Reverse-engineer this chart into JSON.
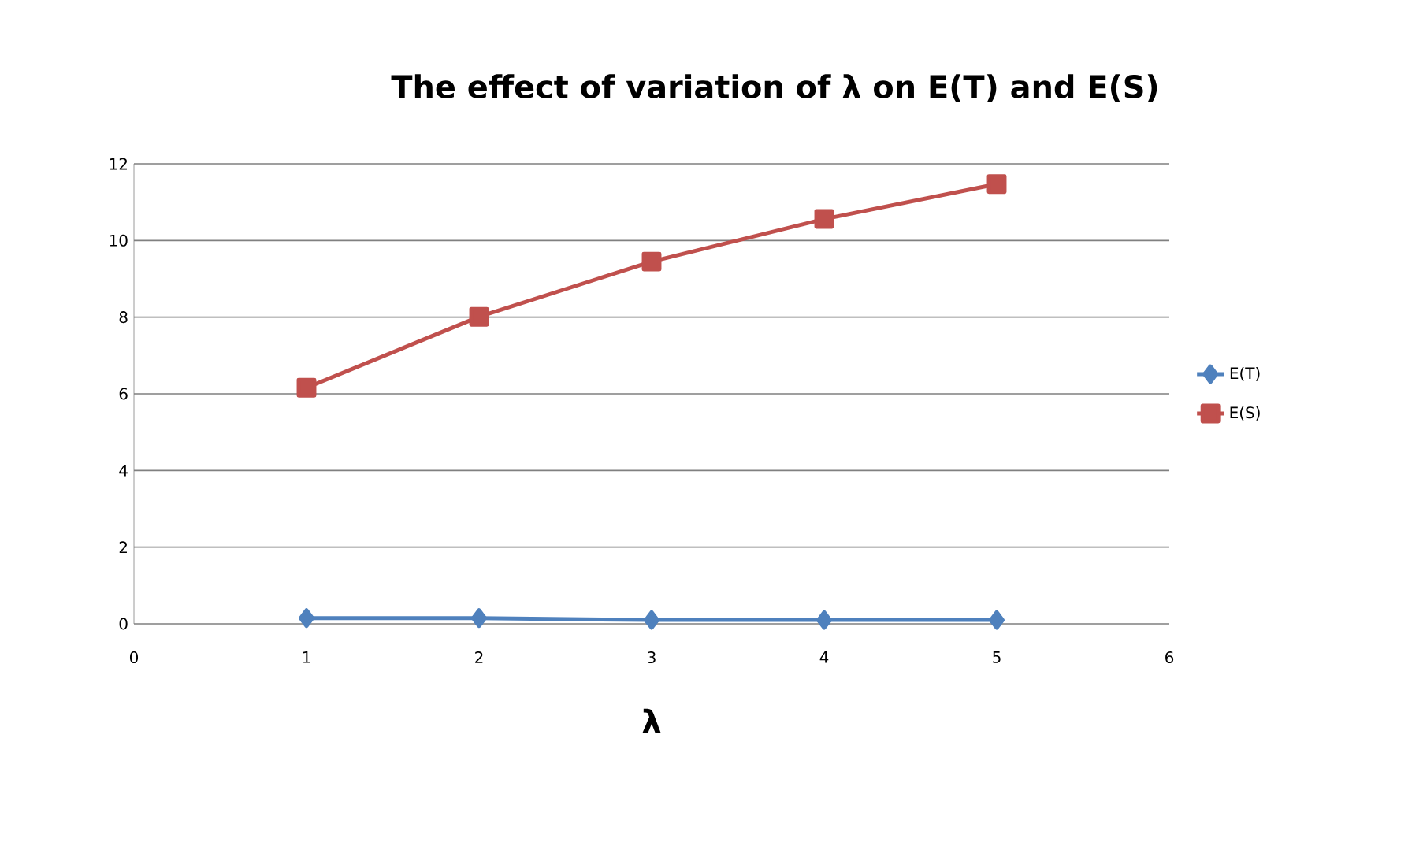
{
  "chart_data": {
    "type": "line",
    "title": "The effect of variation of λ on E(T) and E(S)",
    "xlabel": "λ",
    "x": [
      1,
      2,
      3,
      4,
      5
    ],
    "series": [
      {
        "name": "E(T)",
        "color": "#4f81bd",
        "marker": "diamond",
        "values": [
          0.15,
          0.15,
          0.1,
          0.1,
          0.1
        ]
      },
      {
        "name": "E(S)",
        "color": "#c0504d",
        "marker": "square",
        "values": [
          6.16,
          8.01,
          9.45,
          10.56,
          11.47
        ]
      }
    ],
    "xlim": [
      0,
      6
    ],
    "xticks": [
      0,
      1,
      2,
      3,
      4,
      5,
      6
    ],
    "ylim": [
      0,
      12
    ],
    "yticks": [
      0,
      2,
      4,
      6,
      8,
      10,
      12
    ],
    "grid": "y",
    "legend": "right",
    "line_style": "solid"
  }
}
